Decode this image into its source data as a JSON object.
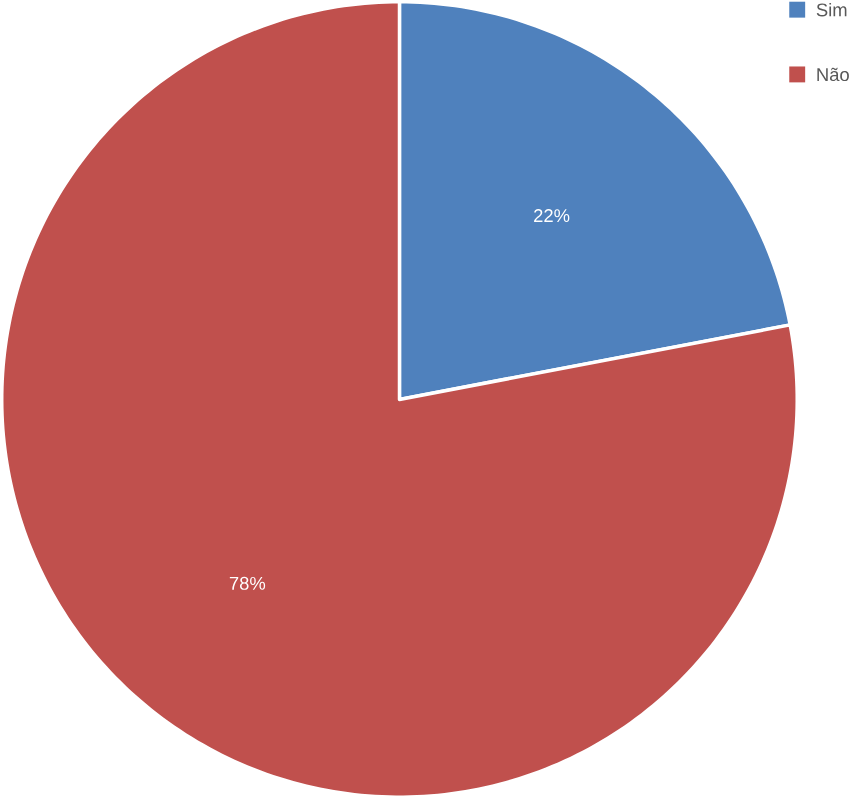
{
  "chart_data": {
    "type": "pie",
    "categories": [
      "Sim",
      "Não"
    ],
    "values": [
      22,
      78
    ],
    "value_labels": [
      "22%",
      "78%"
    ],
    "colors": [
      "#4f81bd",
      "#c0504d"
    ],
    "legend": "top right"
  }
}
